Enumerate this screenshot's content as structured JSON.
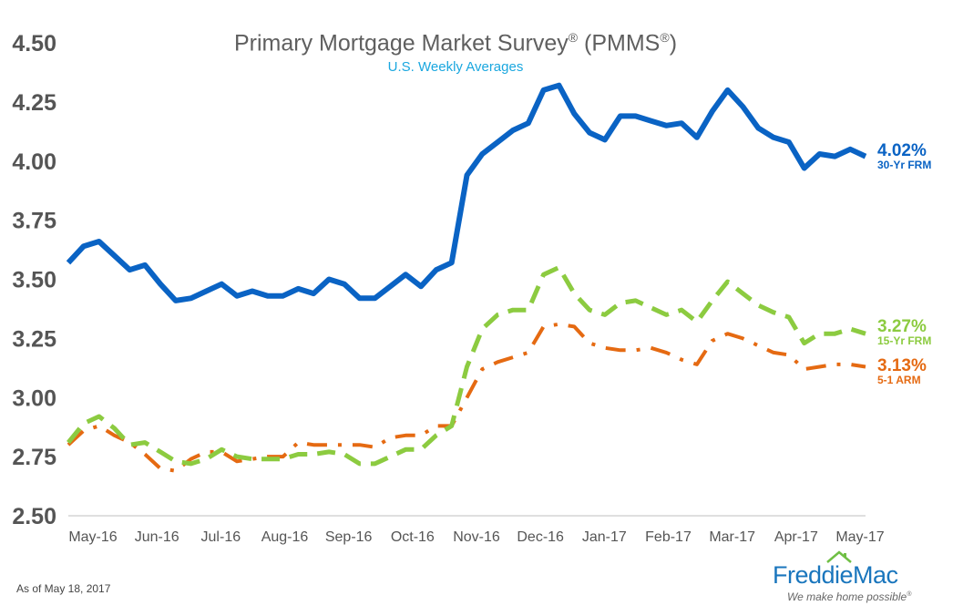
{
  "header": {
    "title": "Primary Mortgage Market Survey",
    "title_acronym": "(PMMS",
    "registered": "®",
    "close_paren": ")",
    "subtitle": "U.S. Weekly Averages"
  },
  "footer": {
    "as_of": "As of May 18, 2017",
    "logo_name": "FreddieMac",
    "logo_tagline": "We make home possible"
  },
  "colors": {
    "frm30": "#0a63c4",
    "frm15": "#8ccb40",
    "arm51": "#e56a12",
    "axis_text": "#555555"
  },
  "chart_data": {
    "type": "line",
    "title": "Primary Mortgage Market Survey® (PMMS®)",
    "subtitle": "U.S. Weekly Averages",
    "ylim": [
      2.5,
      4.5
    ],
    "yticks": [
      "4.50",
      "4.25",
      "4.00",
      "3.75",
      "3.50",
      "3.25",
      "3.00",
      "2.75",
      "2.50"
    ],
    "ytick_values": [
      4.5,
      4.25,
      4.0,
      3.75,
      3.5,
      3.25,
      3.0,
      2.75,
      2.5
    ],
    "xticks": [
      "May-16",
      "Jun-16",
      "Jul-16",
      "Aug-16",
      "Sep-16",
      "Oct-16",
      "Nov-16",
      "Dec-16",
      "Jan-17",
      "Feb-17",
      "Mar-17",
      "Apr-17",
      "May-17"
    ],
    "grid": false,
    "legend": "end-labels-right",
    "series": [
      {
        "name": "30-Yr FRM",
        "end_label": "4.02%",
        "style": "solid",
        "values": [
          3.57,
          3.64,
          3.66,
          3.6,
          3.54,
          3.56,
          3.48,
          3.41,
          3.42,
          3.45,
          3.48,
          3.43,
          3.45,
          3.43,
          3.43,
          3.46,
          3.44,
          3.5,
          3.48,
          3.42,
          3.42,
          3.47,
          3.52,
          3.47,
          3.54,
          3.57,
          3.94,
          4.03,
          4.08,
          4.13,
          4.16,
          4.3,
          4.32,
          4.2,
          4.12,
          4.09,
          4.19,
          4.19,
          4.17,
          4.15,
          4.16,
          4.1,
          4.21,
          4.3,
          4.23,
          4.14,
          4.1,
          4.08,
          3.97,
          4.03,
          4.02,
          4.05,
          4.02
        ]
      },
      {
        "name": "15-Yr FRM",
        "end_label": "3.27%",
        "style": "dashed",
        "values": [
          2.81,
          2.89,
          2.92,
          2.87,
          2.8,
          2.81,
          2.77,
          2.73,
          2.72,
          2.74,
          2.78,
          2.75,
          2.74,
          2.74,
          2.74,
          2.76,
          2.76,
          2.77,
          2.76,
          2.72,
          2.72,
          2.75,
          2.78,
          2.78,
          2.84,
          2.88,
          3.13,
          3.29,
          3.35,
          3.37,
          3.37,
          3.52,
          3.55,
          3.44,
          3.37,
          3.35,
          3.4,
          3.41,
          3.38,
          3.35,
          3.37,
          3.32,
          3.41,
          3.49,
          3.44,
          3.39,
          3.36,
          3.34,
          3.23,
          3.27,
          3.27,
          3.29,
          3.27
        ]
      },
      {
        "name": "5-1 ARM",
        "end_label": "3.13%",
        "style": "dash-dot",
        "values": [
          2.8,
          2.86,
          2.88,
          2.84,
          2.81,
          2.76,
          2.7,
          2.69,
          2.74,
          2.77,
          2.77,
          2.73,
          2.74,
          2.75,
          2.75,
          2.81,
          2.8,
          2.8,
          2.8,
          2.8,
          2.79,
          2.83,
          2.84,
          2.84,
          2.88,
          2.88,
          3.0,
          3.12,
          3.15,
          3.17,
          3.19,
          3.3,
          3.31,
          3.3,
          3.23,
          3.21,
          3.2,
          3.2,
          3.21,
          3.19,
          3.16,
          3.14,
          3.24,
          3.27,
          3.25,
          3.22,
          3.19,
          3.18,
          3.12,
          3.13,
          3.14,
          3.14,
          3.13
        ]
      }
    ]
  }
}
